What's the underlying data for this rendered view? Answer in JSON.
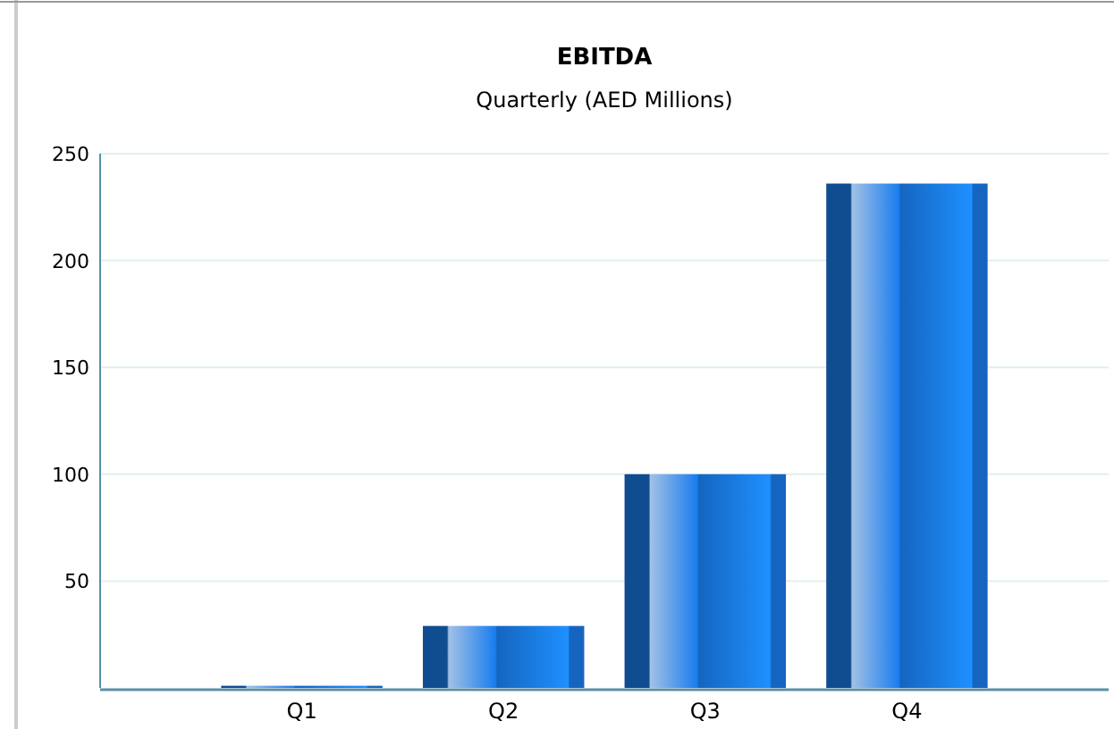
{
  "chart_data": {
    "type": "bar",
    "title": "EBITDA",
    "subtitle": "Quarterly (AED Millions)",
    "categories": [
      "Q1",
      "Q2",
      "Q3",
      "Q4"
    ],
    "values": [
      1,
      29,
      100,
      236
    ],
    "color": "#1565c0",
    "ylim": [
      0,
      250
    ],
    "yticks": [
      50,
      100,
      150,
      200,
      250
    ],
    "grid": "y"
  }
}
